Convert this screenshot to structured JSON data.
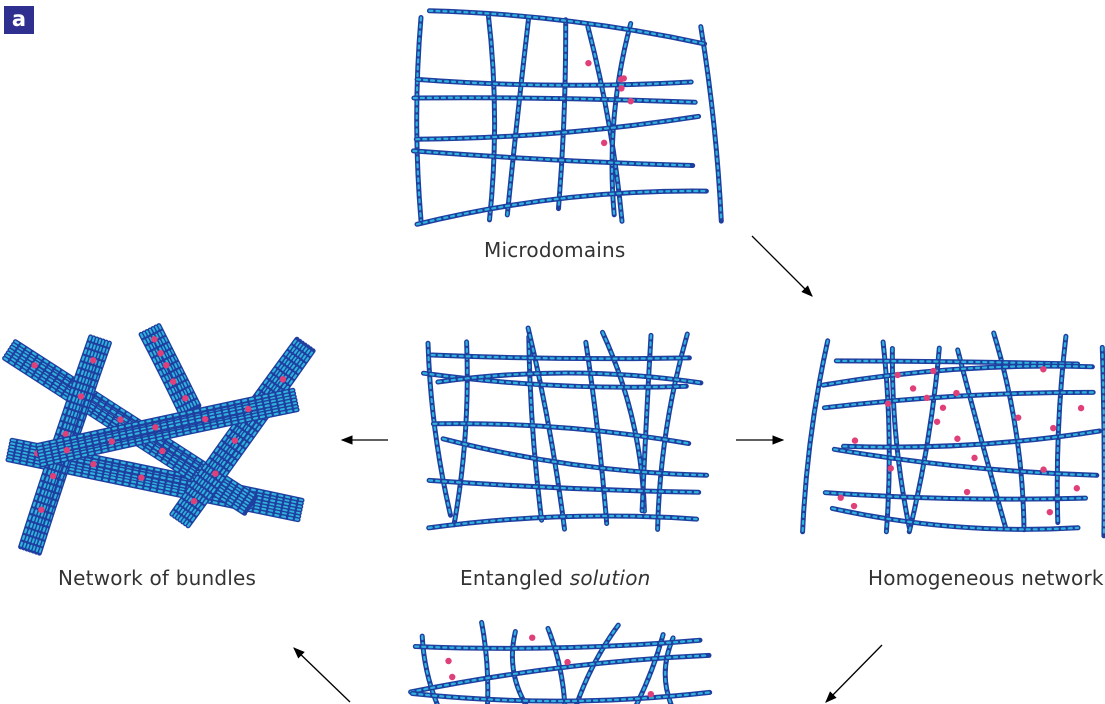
{
  "panel_label": "a",
  "colors": {
    "fibre_dark": "#1f3fa0",
    "fibre_light": "#2fb2dc",
    "crosslink": "#e0407a",
    "arrow": "#000000",
    "badge_bg": "#2f2f8f"
  },
  "states": {
    "microdomains": {
      "label": "Microdomains"
    },
    "entangled": {
      "label_prefix": "Entangled",
      "label_italic": "solution"
    },
    "bundles": {
      "label": "Network of bundles"
    },
    "homogeneous": {
      "label": "Homogeneous network"
    }
  },
  "transitions": [
    {
      "from": "microdomains",
      "to": "homogeneous"
    },
    {
      "from": "entangled",
      "to": "bundles"
    },
    {
      "from": "entangled",
      "to": "homogeneous"
    },
    {
      "from": "homogeneous",
      "to": "bottom-network"
    },
    {
      "from": "bottom-network",
      "to": "bundles"
    }
  ]
}
